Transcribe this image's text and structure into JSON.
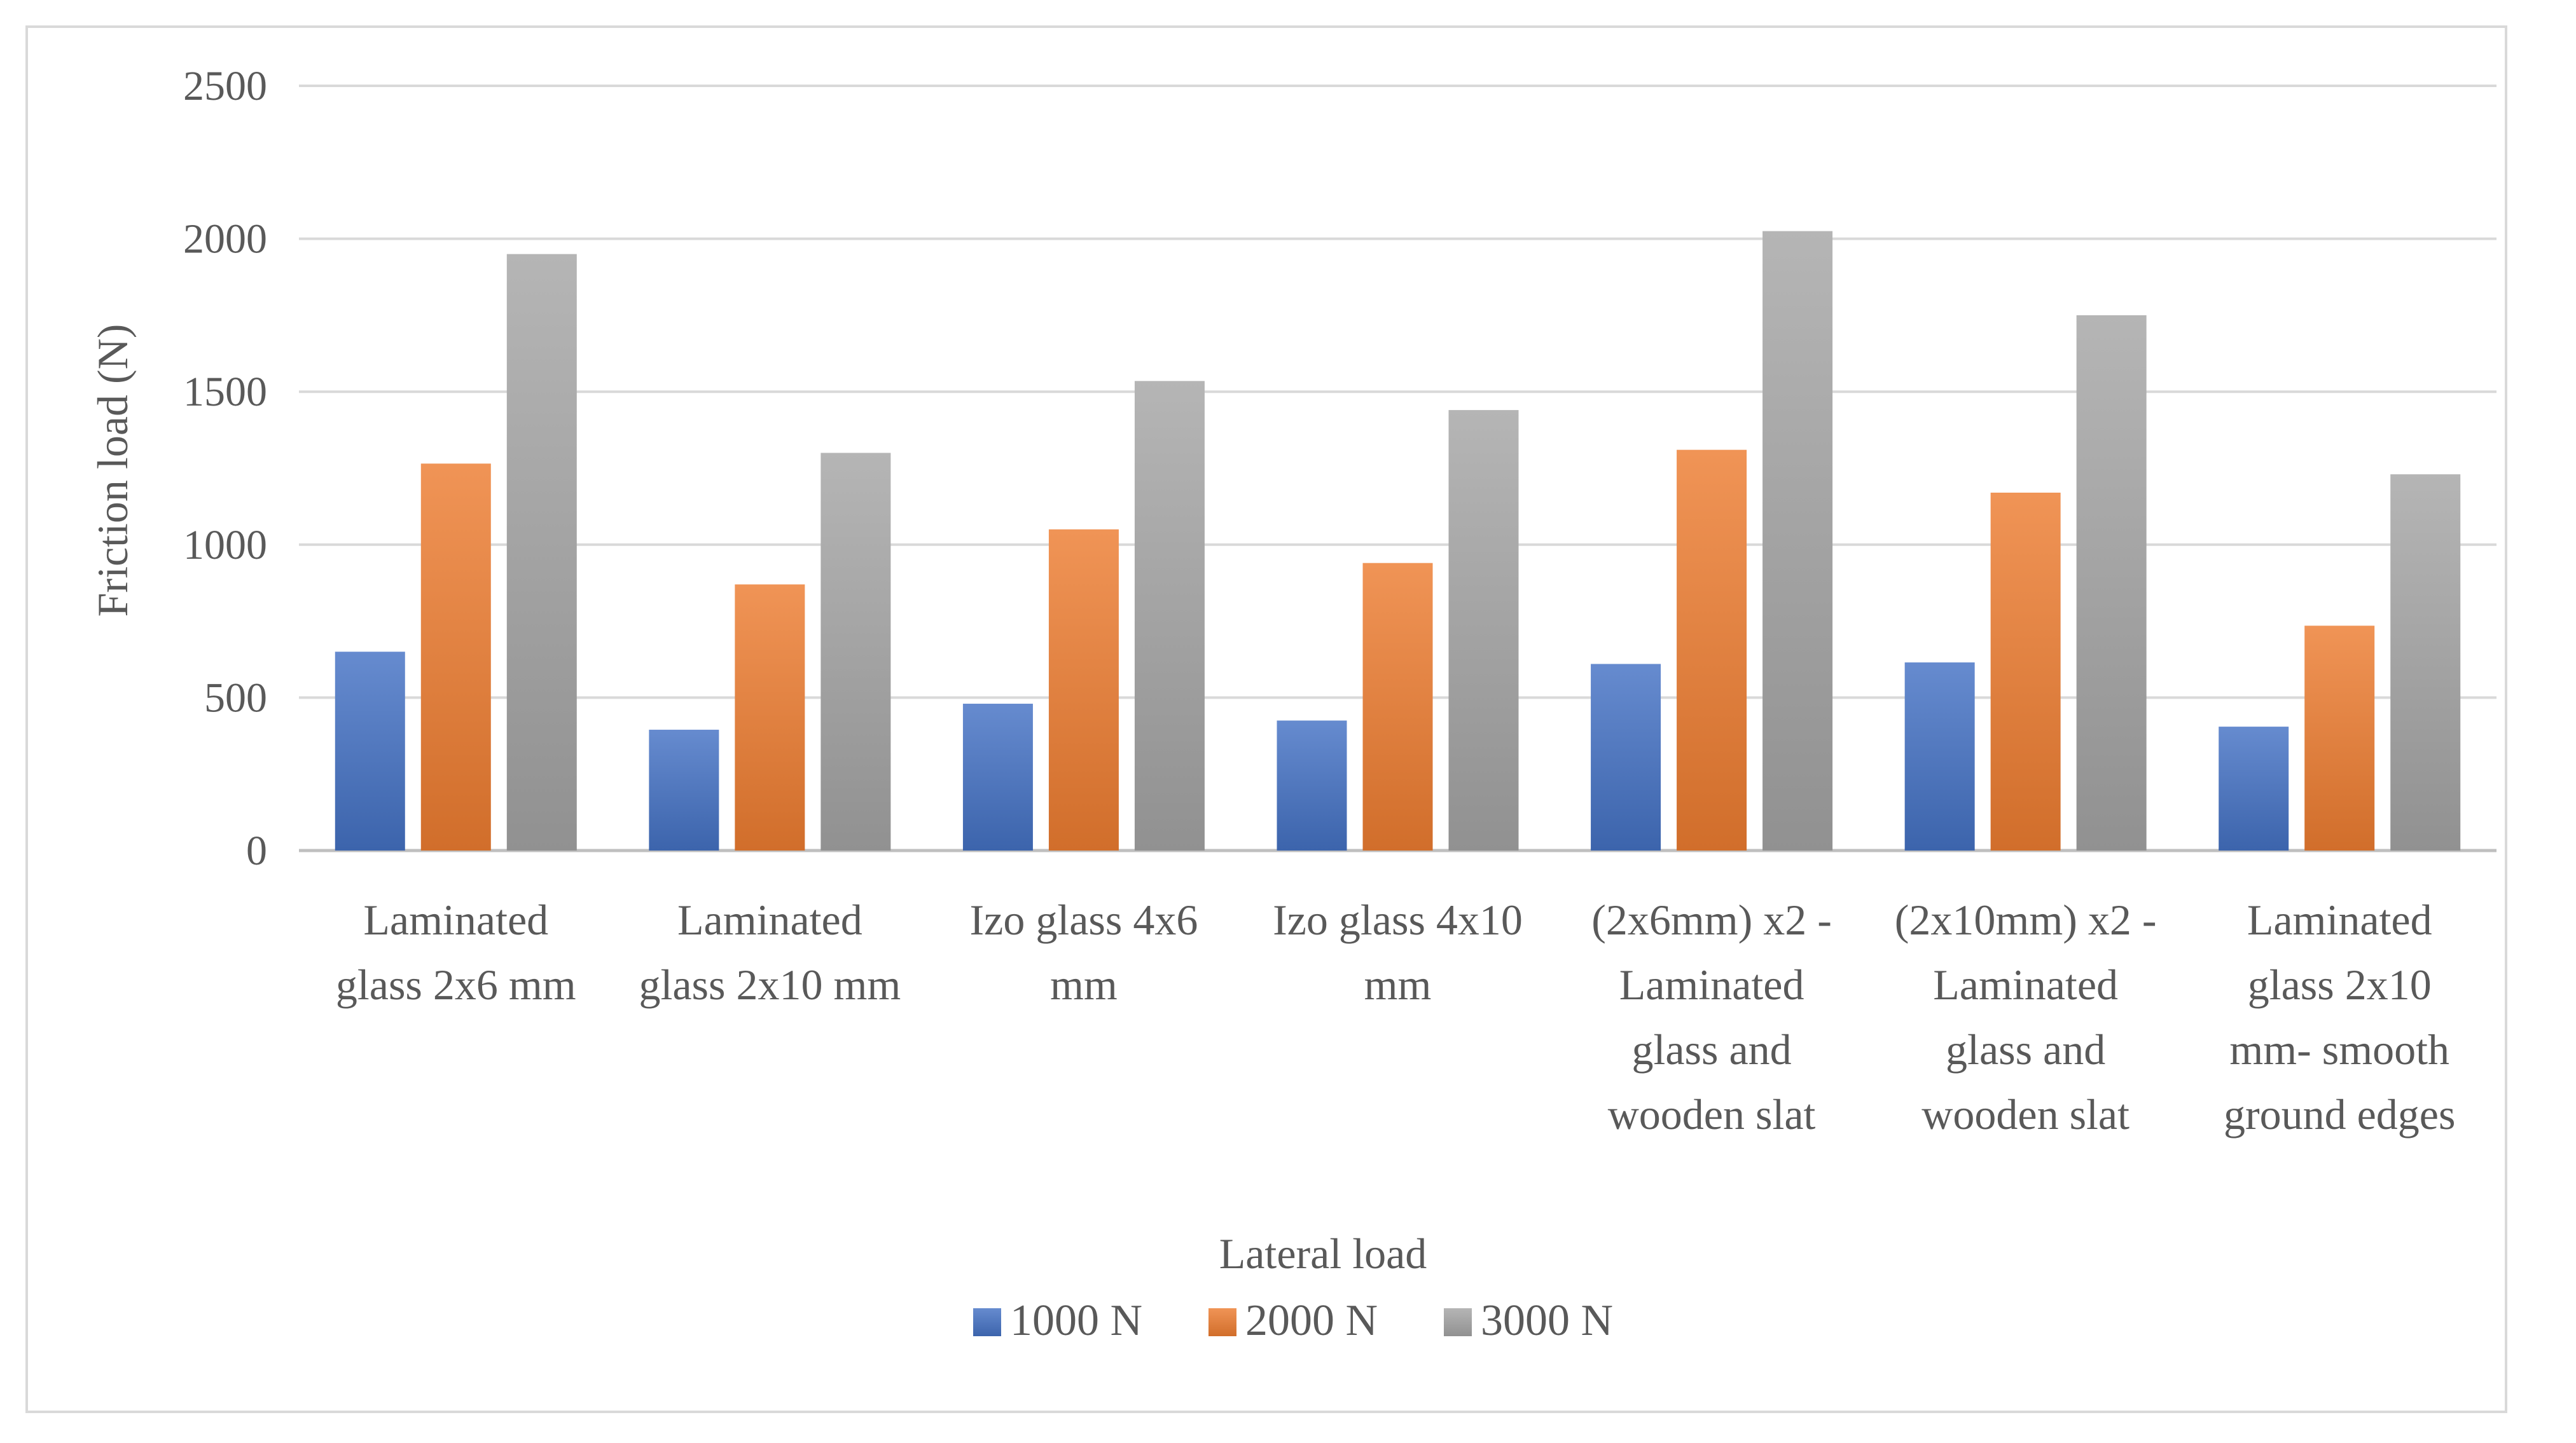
{
  "chart_data": {
    "type": "bar",
    "title": "",
    "ylabel": "Friction load (N)",
    "xlabel": "Lateral load",
    "ylim": [
      0,
      2500
    ],
    "yticks": [
      0,
      500,
      1000,
      1500,
      2000,
      2500
    ],
    "grid": true,
    "legend_position": "bottom",
    "categories": [
      [
        "Laminated",
        "glass 2x6 mm"
      ],
      [
        "Laminated",
        "glass 2x10 mm"
      ],
      [
        "Izo glass 4x6",
        "mm"
      ],
      [
        "Izo glass  4x10",
        "mm"
      ],
      [
        "(2x6mm) x2 -",
        "Laminated",
        "glass and",
        "wooden slat"
      ],
      [
        "(2x10mm) x2 -",
        "Laminated",
        "glass and",
        "wooden slat"
      ],
      [
        "Laminated",
        "glass 2x10",
        "mm- smooth",
        "ground edges"
      ]
    ],
    "series": [
      {
        "name": "1000 N",
        "color": "#4472c4",
        "values": [
          650,
          395,
          480,
          425,
          610,
          615,
          405
        ]
      },
      {
        "name": "2000 N",
        "color": "#ed7d31",
        "values": [
          1265,
          870,
          1050,
          940,
          1310,
          1170,
          735
        ]
      },
      {
        "name": "3000 N",
        "color": "#a5a5a5",
        "values": [
          1950,
          1300,
          1535,
          1440,
          2025,
          1750,
          1230
        ]
      }
    ]
  }
}
